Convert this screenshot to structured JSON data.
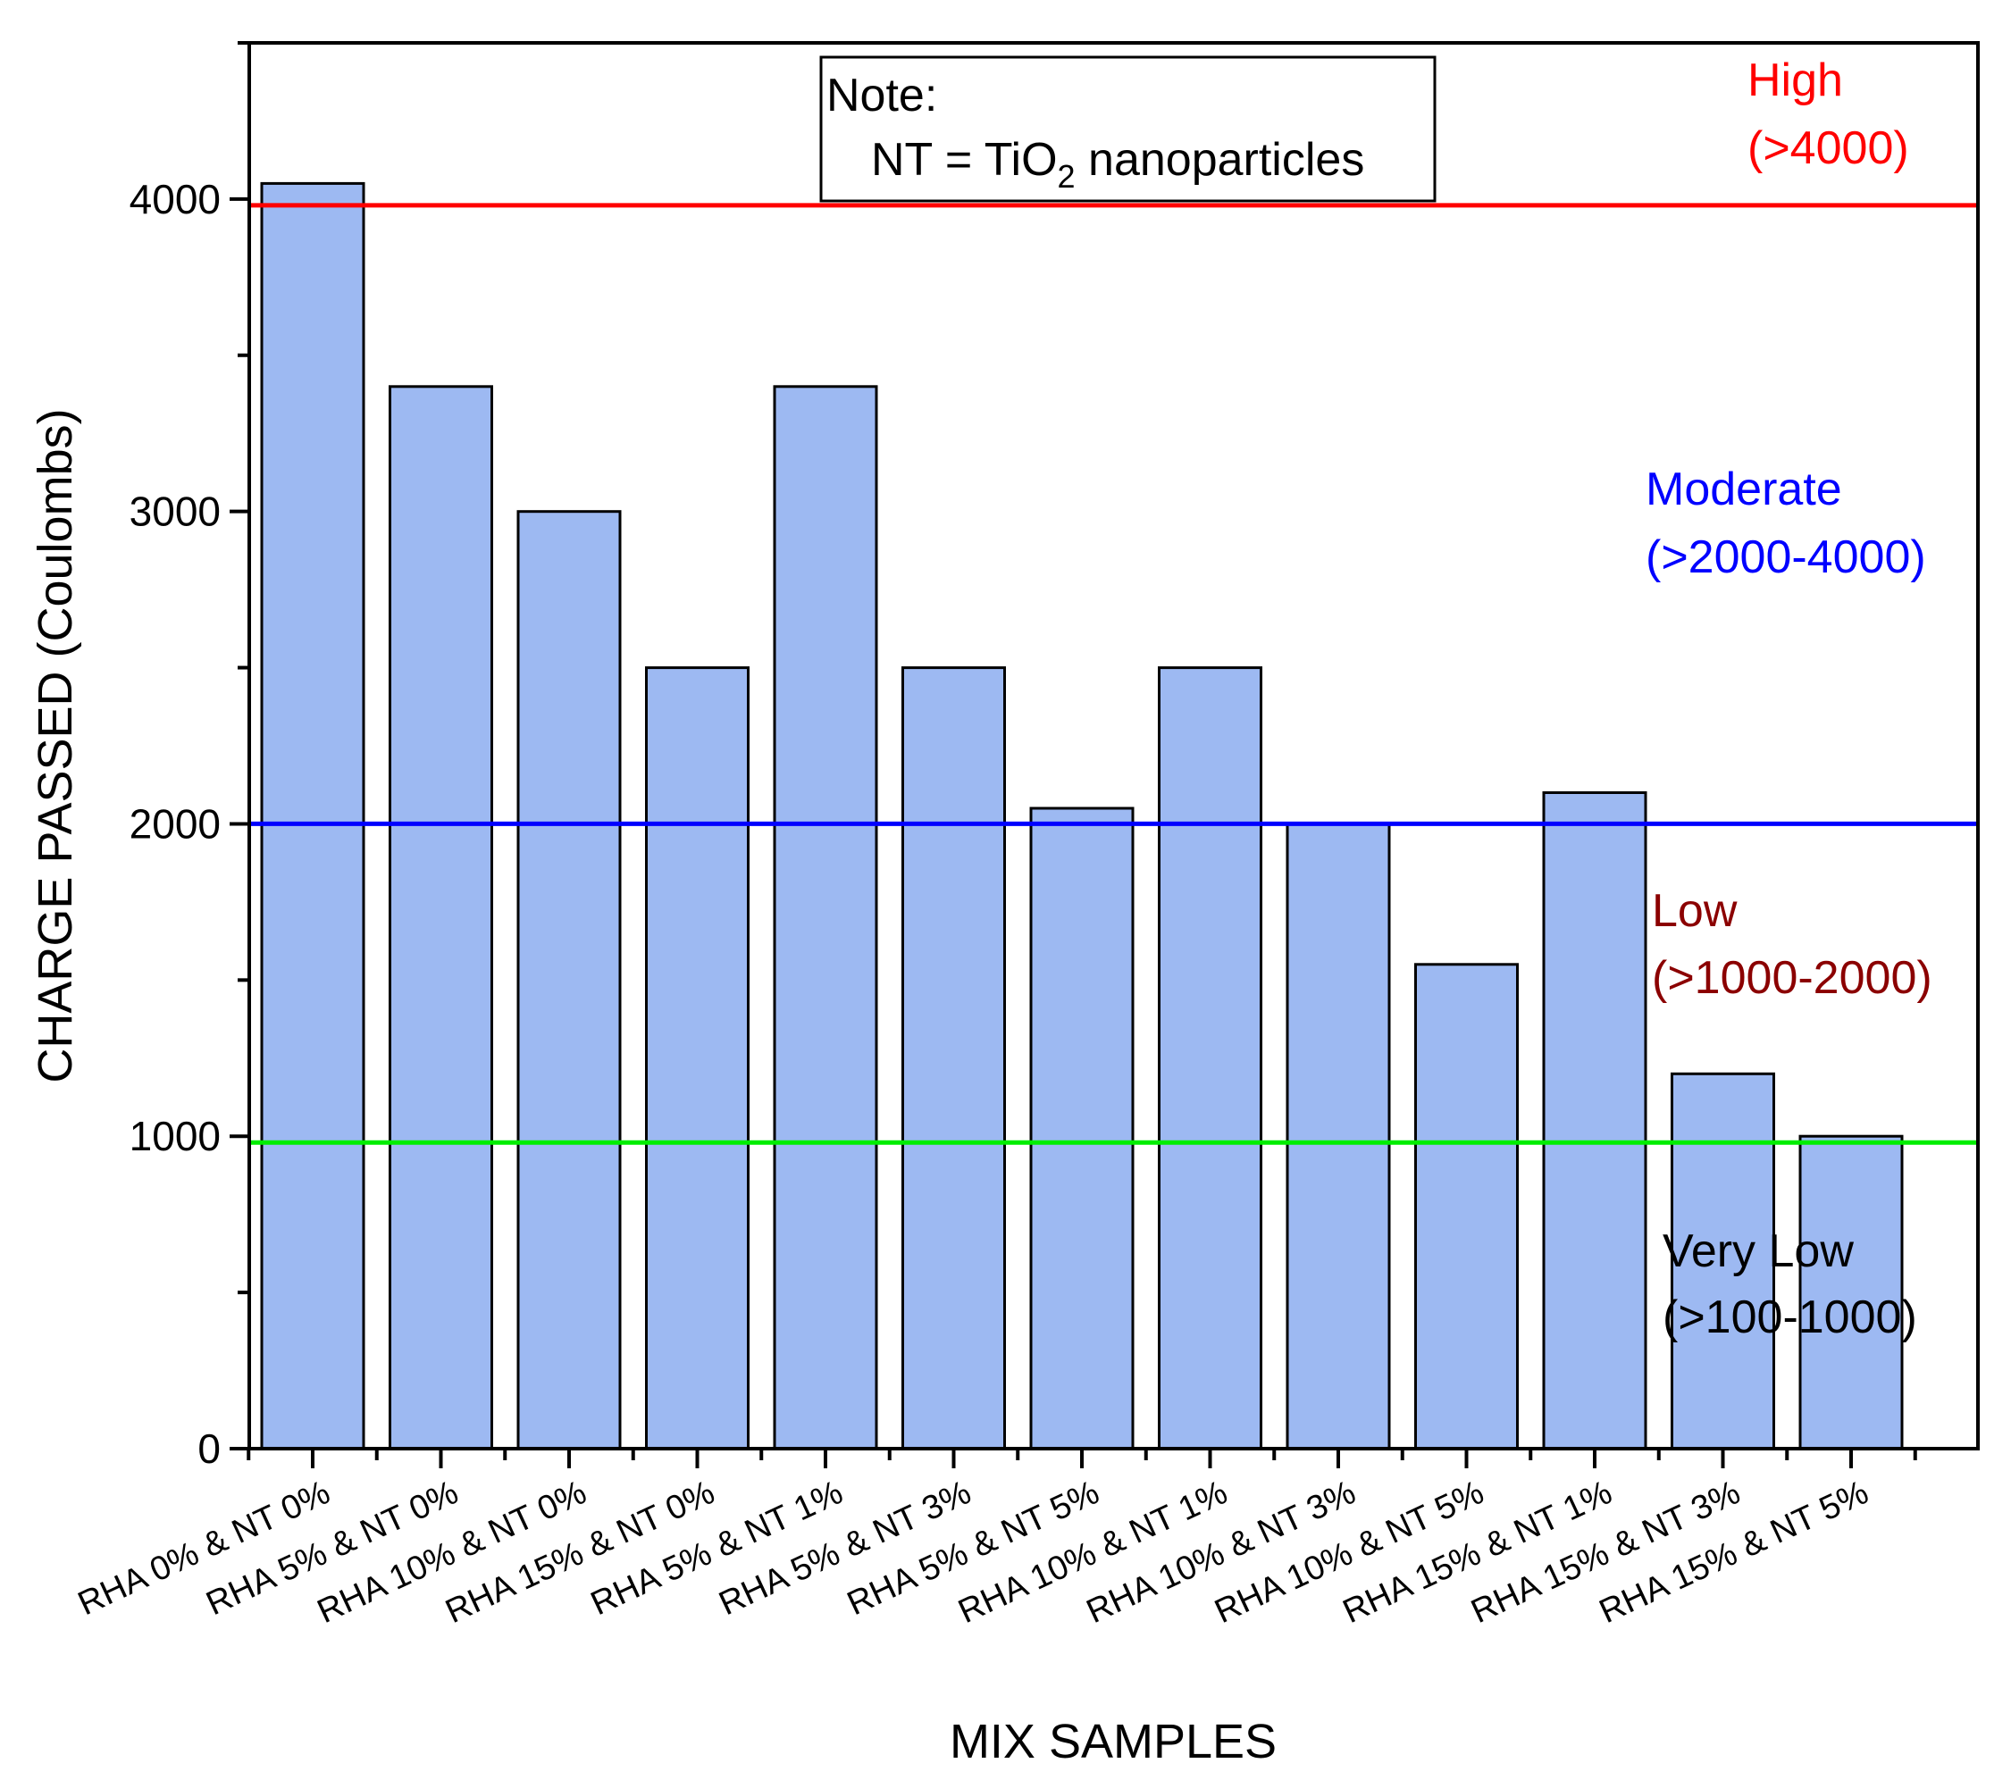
{
  "chart_data": {
    "type": "bar",
    "title": "",
    "xlabel": "MIX SAMPLES",
    "ylabel": "CHARGE PASSED (Coulombs)",
    "ylim": [
      0,
      4500
    ],
    "yticks": [
      0,
      1000,
      2000,
      3000,
      4000
    ],
    "categories": [
      "RHA 0% & NT 0%",
      "RHA 5% & NT 0%",
      "RHA 10% & NT 0%",
      "RHA 15% & NT 0%",
      "RHA 5% & NT 1%",
      "RHA 5% & NT 3%",
      "RHA 5% & NT 5%",
      "RHA 10% & NT 1%",
      "RHA 10% & NT 3%",
      "RHA 10% & NT 5%",
      "RHA 15% & NT 1%",
      "RHA 15% & NT 3%",
      "RHA 15% & NT 5%"
    ],
    "values": [
      4050,
      3400,
      3000,
      2500,
      3400,
      2500,
      2050,
      2500,
      2000,
      1550,
      2100,
      1200,
      1000
    ],
    "bar_color": "#9DB9F2",
    "reference_lines": [
      {
        "name": "High",
        "value": 3980,
        "color": "#FF0000"
      },
      {
        "name": "Moderate",
        "value": 2000,
        "color": "#0000FF"
      },
      {
        "name": "Very Low",
        "value": 980,
        "color": "#00EE00"
      }
    ],
    "zones": [
      {
        "label_line1": "High",
        "label_line2": "(>4000)",
        "color": "#FF0000"
      },
      {
        "label_line1": "Moderate",
        "label_line2": "(>2000-4000)",
        "color": "#0000FF"
      },
      {
        "label_line1": "Low",
        "label_line2": "(>1000-2000)",
        "color": "#8B0000"
      },
      {
        "label_line1": "Very Low",
        "label_line2": "(>100-1000)",
        "color": "#000000"
      }
    ],
    "note": {
      "heading": "Note:",
      "line_prefix": "NT = TiO",
      "line_sub": "2",
      "line_suffix": " nanoparticles"
    }
  }
}
